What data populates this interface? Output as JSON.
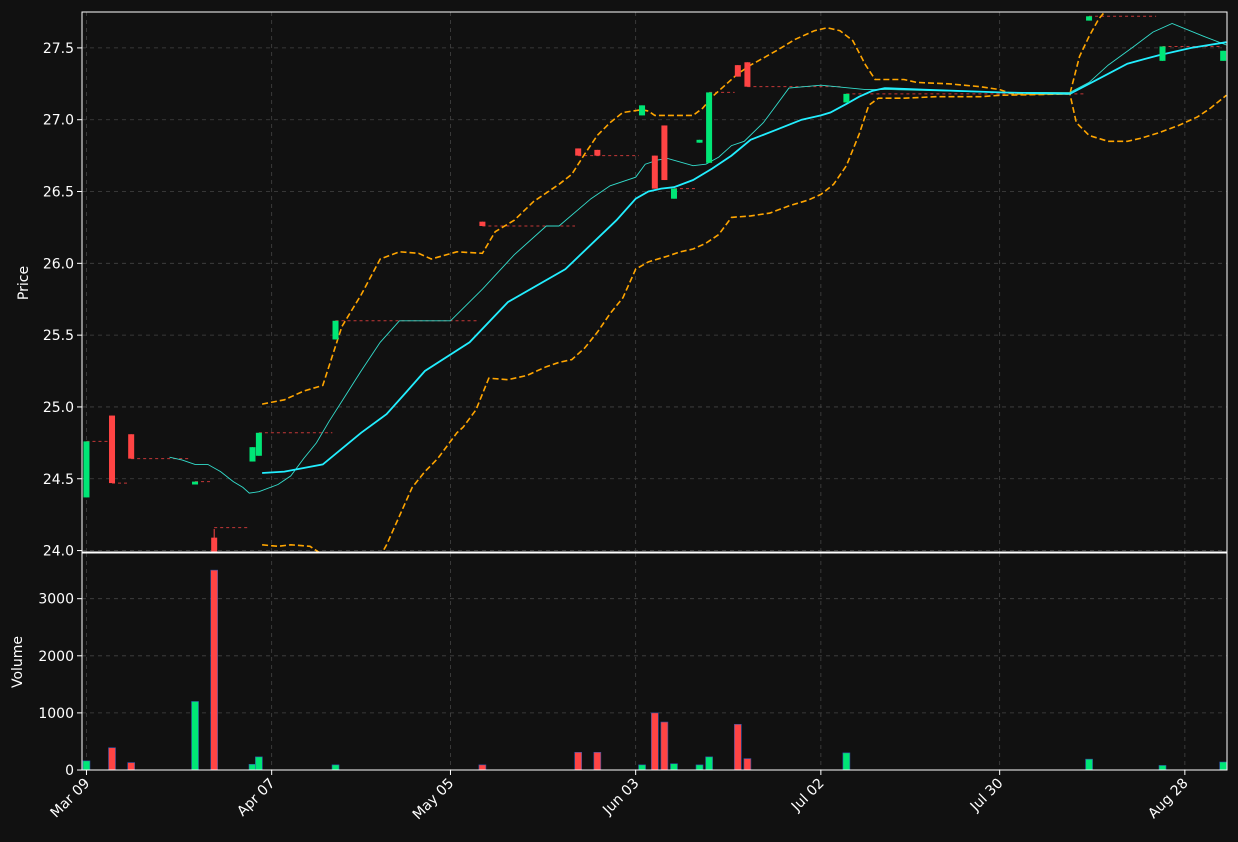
{
  "chart_data": {
    "type": "candlestick",
    "background": "#111111",
    "grid": true,
    "colors": {
      "up": "#00e676",
      "down": "#ff4444",
      "ma_fast": "#33ddcc",
      "ma_slow": "#22eeff",
      "bands": "#ffa500",
      "text": "#ffffff",
      "grid": "#444444"
    },
    "x_tick_labels": [
      {
        "label": "Mar 09",
        "day": 0
      },
      {
        "label": "Apr 07",
        "day": 29
      },
      {
        "label": "May 05",
        "day": 57
      },
      {
        "label": "Jun 03",
        "day": 86
      },
      {
        "label": "Jul 02",
        "day": 115
      },
      {
        "label": "Jul 30",
        "day": 143
      },
      {
        "label": "Aug 28",
        "day": 172
      }
    ],
    "x_range_days": [
      -0.7,
      178.6
    ],
    "price_panel": {
      "ylabel": "Price",
      "ylim": [
        23.99,
        27.75
      ],
      "yticks": [
        "24.0",
        "24.5",
        "25.0",
        "25.5",
        "26.0",
        "26.5",
        "27.0",
        "27.5"
      ],
      "candles": [
        {
          "day": 0,
          "open": 24.37,
          "high": 24.76,
          "low": 24.37,
          "close": 24.76
        },
        {
          "day": 4,
          "open": 24.94,
          "high": 24.94,
          "low": 24.47,
          "close": 24.47
        },
        {
          "day": 7,
          "open": 24.81,
          "high": 24.81,
          "low": 24.64,
          "close": 24.64
        },
        {
          "day": 17,
          "open": 24.46,
          "high": 24.48,
          "low": 24.46,
          "close": 24.48
        },
        {
          "day": 20,
          "open": 24.09,
          "high": 24.15,
          "low": 23.99,
          "close": 23.99
        },
        {
          "day": 26,
          "open": 24.62,
          "high": 24.72,
          "low": 24.62,
          "close": 24.72
        },
        {
          "day": 27,
          "open": 24.66,
          "high": 24.82,
          "low": 24.66,
          "close": 24.82
        },
        {
          "day": 39,
          "open": 25.47,
          "high": 25.6,
          "low": 25.47,
          "close": 25.6
        },
        {
          "day": 62,
          "open": 26.29,
          "high": 26.29,
          "low": 26.26,
          "close": 26.26
        },
        {
          "day": 77,
          "open": 26.8,
          "high": 26.8,
          "low": 26.75,
          "close": 26.75
        },
        {
          "day": 80,
          "open": 26.79,
          "high": 26.79,
          "low": 26.75,
          "close": 26.75
        },
        {
          "day": 87,
          "open": 27.03,
          "high": 27.1,
          "low": 27.03,
          "close": 27.1
        },
        {
          "day": 89,
          "open": 26.75,
          "high": 26.75,
          "low": 26.52,
          "close": 26.52
        },
        {
          "day": 90.5,
          "open": 26.96,
          "high": 26.96,
          "low": 26.58,
          "close": 26.58
        },
        {
          "day": 92,
          "open": 26.45,
          "high": 26.52,
          "low": 26.45,
          "close": 26.52
        },
        {
          "day": 96,
          "open": 26.84,
          "high": 26.86,
          "low": 26.84,
          "close": 26.86
        },
        {
          "day": 97.5,
          "open": 26.7,
          "high": 27.19,
          "low": 26.7,
          "close": 27.19
        },
        {
          "day": 102,
          "open": 27.38,
          "high": 27.38,
          "low": 27.3,
          "close": 27.3
        },
        {
          "day": 103.5,
          "open": 27.4,
          "high": 27.4,
          "low": 27.23,
          "close": 27.23
        },
        {
          "day": 119,
          "open": 27.12,
          "high": 27.18,
          "low": 27.12,
          "close": 27.18
        },
        {
          "day": 157,
          "open": 27.69,
          "high": 27.72,
          "low": 27.69,
          "close": 27.72
        },
        {
          "day": 168.5,
          "open": 27.41,
          "high": 27.51,
          "low": 27.41,
          "close": 27.51
        },
        {
          "day": 178,
          "open": 27.41,
          "high": 27.48,
          "low": 27.41,
          "close": 27.48
        }
      ],
      "ma_fast": [
        [
          13,
          24.65
        ],
        [
          15,
          24.63
        ],
        [
          17,
          24.6
        ],
        [
          19,
          24.6
        ],
        [
          21,
          24.55
        ],
        [
          23,
          24.48
        ],
        [
          24.5,
          24.44
        ],
        [
          25.5,
          24.4
        ],
        [
          27,
          24.41
        ],
        [
          30,
          24.46
        ],
        [
          32,
          24.52
        ],
        [
          34,
          24.64
        ],
        [
          36,
          24.75
        ],
        [
          38,
          24.9
        ],
        [
          40,
          25.04
        ],
        [
          43,
          25.25
        ],
        [
          46,
          25.45
        ],
        [
          49,
          25.6
        ],
        [
          57,
          25.6
        ],
        [
          62,
          25.82
        ],
        [
          67,
          26.06
        ],
        [
          72,
          26.26
        ],
        [
          74,
          26.26
        ],
        [
          79,
          26.45
        ],
        [
          82,
          26.54
        ],
        [
          86,
          26.6
        ],
        [
          87.5,
          26.69
        ],
        [
          89.5,
          26.72
        ],
        [
          91,
          26.73
        ],
        [
          95,
          26.68
        ],
        [
          97,
          26.69
        ],
        [
          99,
          26.74
        ],
        [
          101,
          26.82
        ],
        [
          103,
          26.85
        ],
        [
          106,
          26.98
        ],
        [
          108,
          27.1
        ],
        [
          110,
          27.22
        ],
        [
          115,
          27.24
        ],
        [
          122,
          27.21
        ],
        [
          126,
          27.21
        ],
        [
          135,
          27.2
        ],
        [
          143,
          27.19
        ],
        [
          154,
          27.19
        ],
        [
          157,
          27.26
        ],
        [
          160,
          27.38
        ],
        [
          164,
          27.51
        ],
        [
          167,
          27.61
        ],
        [
          170,
          27.67
        ],
        [
          175,
          27.58
        ],
        [
          178.5,
          27.52
        ]
      ],
      "ma_slow": [
        [
          27.5,
          24.54
        ],
        [
          31,
          24.55
        ],
        [
          37,
          24.6
        ],
        [
          43,
          24.82
        ],
        [
          47,
          24.95
        ],
        [
          50,
          25.1
        ],
        [
          53,
          25.25
        ],
        [
          60,
          25.45
        ],
        [
          66,
          25.73
        ],
        [
          75,
          25.96
        ],
        [
          83,
          26.3
        ],
        [
          86,
          26.45
        ],
        [
          88,
          26.5
        ],
        [
          90,
          26.52
        ],
        [
          92,
          26.53
        ],
        [
          95,
          26.58
        ],
        [
          98,
          26.66
        ],
        [
          101,
          26.75
        ],
        [
          104,
          26.86
        ],
        [
          108,
          26.93
        ],
        [
          112,
          27.0
        ],
        [
          115,
          27.03
        ],
        [
          116.5,
          27.05
        ],
        [
          119,
          27.11
        ],
        [
          121,
          27.16
        ],
        [
          123,
          27.2
        ],
        [
          125,
          27.22
        ],
        [
          131,
          27.21
        ],
        [
          143,
          27.19
        ],
        [
          154,
          27.18
        ],
        [
          157,
          27.25
        ],
        [
          160,
          27.32
        ],
        [
          163,
          27.39
        ],
        [
          168,
          27.45
        ],
        [
          173,
          27.5
        ],
        [
          178.5,
          27.54
        ]
      ],
      "band_upper": [
        [
          27.5,
          25.02
        ],
        [
          31,
          25.05
        ],
        [
          34,
          25.11
        ],
        [
          37,
          25.15
        ],
        [
          40,
          25.56
        ],
        [
          43,
          25.78
        ],
        [
          46,
          26.03
        ],
        [
          49,
          26.08
        ],
        [
          52,
          26.07
        ],
        [
          54,
          26.03
        ],
        [
          58,
          26.08
        ],
        [
          62,
          26.07
        ],
        [
          64,
          26.22
        ],
        [
          67,
          26.3
        ],
        [
          70,
          26.43
        ],
        [
          74,
          26.55
        ],
        [
          76,
          26.62
        ],
        [
          78,
          26.76
        ],
        [
          80,
          26.89
        ],
        [
          82,
          26.98
        ],
        [
          84,
          27.05
        ],
        [
          87,
          27.07
        ],
        [
          88,
          27.06
        ],
        [
          89,
          27.03
        ],
        [
          92,
          27.03
        ],
        [
          95,
          27.03
        ],
        [
          96.5,
          27.08
        ],
        [
          98,
          27.16
        ],
        [
          100,
          27.24
        ],
        [
          102,
          27.32
        ],
        [
          104,
          27.38
        ],
        [
          106,
          27.43
        ],
        [
          108,
          27.48
        ],
        [
          111,
          27.56
        ],
        [
          114,
          27.62
        ],
        [
          116,
          27.64
        ],
        [
          118,
          27.62
        ],
        [
          120,
          27.55
        ],
        [
          122,
          27.38
        ],
        [
          123.5,
          27.28
        ],
        [
          128,
          27.28
        ],
        [
          130,
          27.26
        ],
        [
          135,
          27.25
        ],
        [
          140,
          27.23
        ],
        [
          143,
          27.21
        ],
        [
          145,
          27.18
        ],
        [
          154,
          27.18
        ],
        [
          155.5,
          27.44
        ],
        [
          157,
          27.58
        ],
        [
          158.5,
          27.7
        ],
        [
          160,
          27.78
        ]
      ],
      "band_lower": [
        [
          27.5,
          24.04
        ],
        [
          30,
          24.03
        ],
        [
          32,
          24.04
        ],
        [
          35,
          24.03
        ],
        [
          37,
          23.97
        ],
        [
          40,
          23.78
        ],
        [
          43,
          23.82
        ],
        [
          45,
          23.88
        ],
        [
          47,
          24.04
        ],
        [
          49,
          24.24
        ],
        [
          51,
          24.44
        ],
        [
          53,
          24.55
        ],
        [
          55,
          24.64
        ],
        [
          57,
          24.76
        ],
        [
          58,
          24.82
        ],
        [
          59,
          24.86
        ],
        [
          61,
          24.98
        ],
        [
          63,
          25.2
        ],
        [
          66,
          25.19
        ],
        [
          69,
          25.22
        ],
        [
          72,
          25.28
        ],
        [
          74,
          25.31
        ],
        [
          76,
          25.33
        ],
        [
          78,
          25.41
        ],
        [
          80,
          25.52
        ],
        [
          82,
          25.65
        ],
        [
          84,
          25.76
        ],
        [
          86,
          25.96
        ],
        [
          88,
          26.01
        ],
        [
          91,
          26.05
        ],
        [
          93,
          26.08
        ],
        [
          95,
          26.1
        ],
        [
          97,
          26.14
        ],
        [
          99,
          26.2
        ],
        [
          101,
          26.32
        ],
        [
          104,
          26.33
        ],
        [
          107,
          26.35
        ],
        [
          110,
          26.4
        ],
        [
          113,
          26.44
        ],
        [
          115,
          26.48
        ],
        [
          117,
          26.55
        ],
        [
          119,
          26.68
        ],
        [
          121,
          26.9
        ],
        [
          122.5,
          27.1
        ],
        [
          124,
          27.15
        ],
        [
          128,
          27.15
        ],
        [
          133,
          27.16
        ],
        [
          140,
          27.16
        ],
        [
          143,
          27.17
        ],
        [
          154,
          27.18
        ],
        [
          155,
          26.98
        ],
        [
          157,
          26.89
        ],
        [
          160,
          26.85
        ],
        [
          163,
          26.85
        ],
        [
          165,
          26.87
        ],
        [
          168,
          26.91
        ],
        [
          171,
          26.96
        ],
        [
          174,
          27.02
        ],
        [
          176,
          27.08
        ],
        [
          178.5,
          27.17
        ]
      ],
      "level_lines": [
        {
          "day1": 0,
          "day2": 3.5,
          "price": 24.76,
          "color": "#ff4444"
        },
        {
          "day1": 4,
          "day2": 6.5,
          "price": 24.47,
          "color": "#ff4444"
        },
        {
          "day1": 7,
          "day2": 16,
          "price": 24.64,
          "color": "#ff4444"
        },
        {
          "day1": 17,
          "day2": 19.5,
          "price": 24.48,
          "color": "#ff4444"
        },
        {
          "day1": 20,
          "day2": 25.5,
          "price": 24.16,
          "color": "#ff4444"
        },
        {
          "day1": 27,
          "day2": 38.5,
          "price": 24.82,
          "color": "#ff4444"
        },
        {
          "day1": 39,
          "day2": 61.5,
          "price": 25.6,
          "color": "#ff4444"
        },
        {
          "day1": 62,
          "day2": 76.5,
          "price": 26.26,
          "color": "#ff4444"
        },
        {
          "day1": 77,
          "day2": 86.5,
          "price": 26.75,
          "color": "#ff4444"
        },
        {
          "day1": 92,
          "day2": 95.5,
          "price": 26.52,
          "color": "#ff4444"
        },
        {
          "day1": 97.5,
          "day2": 101.5,
          "price": 27.19,
          "color": "#ff4444"
        },
        {
          "day1": 103.5,
          "day2": 118.5,
          "price": 27.23,
          "color": "#ff4444"
        },
        {
          "day1": 119,
          "day2": 156.5,
          "price": 27.18,
          "color": "#ff4444"
        },
        {
          "day1": 157,
          "day2": 167.5,
          "price": 27.72,
          "color": "#ff4444"
        },
        {
          "day1": 168.5,
          "day2": 177.5,
          "price": 27.51,
          "color": "#ff4444"
        }
      ]
    },
    "volume_panel": {
      "ylabel": "Volume",
      "ylim": [
        0,
        3800
      ],
      "yticks": [
        "0",
        "1000",
        "2000",
        "3000"
      ],
      "bars": [
        {
          "day": 0,
          "value": 160,
          "dir": "up"
        },
        {
          "day": 4,
          "value": 390,
          "dir": "down"
        },
        {
          "day": 7,
          "value": 130,
          "dir": "down"
        },
        {
          "day": 17,
          "value": 1200,
          "dir": "up"
        },
        {
          "day": 20,
          "value": 3500,
          "dir": "down"
        },
        {
          "day": 26,
          "value": 100,
          "dir": "up"
        },
        {
          "day": 27,
          "value": 230,
          "dir": "up"
        },
        {
          "day": 39,
          "value": 90,
          "dir": "up"
        },
        {
          "day": 62,
          "value": 90,
          "dir": "down"
        },
        {
          "day": 77,
          "value": 310,
          "dir": "down"
        },
        {
          "day": 80,
          "value": 310,
          "dir": "down"
        },
        {
          "day": 87,
          "value": 90,
          "dir": "up"
        },
        {
          "day": 89,
          "value": 1000,
          "dir": "down"
        },
        {
          "day": 90.5,
          "value": 840,
          "dir": "down"
        },
        {
          "day": 92,
          "value": 110,
          "dir": "up"
        },
        {
          "day": 96,
          "value": 90,
          "dir": "up"
        },
        {
          "day": 97.5,
          "value": 230,
          "dir": "up"
        },
        {
          "day": 102,
          "value": 800,
          "dir": "down"
        },
        {
          "day": 103.5,
          "value": 200,
          "dir": "down"
        },
        {
          "day": 119,
          "value": 300,
          "dir": "up"
        },
        {
          "day": 157,
          "value": 190,
          "dir": "up"
        },
        {
          "day": 168.5,
          "value": 80,
          "dir": "up"
        },
        {
          "day": 178,
          "value": 140,
          "dir": "up"
        }
      ]
    }
  }
}
